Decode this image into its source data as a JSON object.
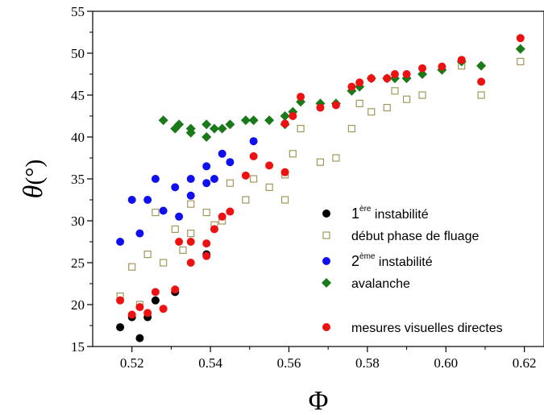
{
  "chart_data": {
    "type": "scatter",
    "xlabel": "Φ",
    "ylabel_symbol": "θ",
    "ylabel_unit": "(°)",
    "xlim": [
      0.51,
      0.625
    ],
    "ylim": [
      15,
      55
    ],
    "x_ticks": [
      0.52,
      0.54,
      0.56,
      0.58,
      0.6,
      0.62
    ],
    "x_tick_labels": [
      "0.52",
      "0.54",
      "0.56",
      "0.58",
      "0.60",
      "0.62"
    ],
    "y_ticks": [
      15,
      20,
      25,
      30,
      35,
      40,
      45,
      50,
      55
    ],
    "y_tick_labels": [
      "15",
      "20",
      "25",
      "30",
      "35",
      "40",
      "45",
      "50",
      "55"
    ],
    "grid": false,
    "legend_position": "bottom-right",
    "series": [
      {
        "name": "1ère instabilité",
        "name_parts": [
          "1",
          "ère",
          " instabilité"
        ],
        "marker": "circle",
        "color": "#000000",
        "points": [
          [
            0.517,
            17.3
          ],
          [
            0.52,
            18.5
          ],
          [
            0.522,
            16.0
          ],
          [
            0.524,
            18.5
          ],
          [
            0.526,
            20.5
          ],
          [
            0.531,
            21.5
          ],
          [
            0.539,
            26.0
          ]
        ]
      },
      {
        "name": "début phase de fluage",
        "marker": "square-open",
        "color": "#a09a5a",
        "points": [
          [
            0.517,
            21.0
          ],
          [
            0.52,
            24.5
          ],
          [
            0.522,
            20.0
          ],
          [
            0.524,
            26.0
          ],
          [
            0.526,
            31.0
          ],
          [
            0.528,
            25.0
          ],
          [
            0.531,
            29.0
          ],
          [
            0.533,
            26.5
          ],
          [
            0.535,
            32.0
          ],
          [
            0.535,
            28.5
          ],
          [
            0.539,
            31.0
          ],
          [
            0.541,
            29.5
          ],
          [
            0.543,
            30.0
          ],
          [
            0.545,
            34.5
          ],
          [
            0.549,
            32.5
          ],
          [
            0.551,
            35.0
          ],
          [
            0.555,
            34.0
          ],
          [
            0.559,
            32.5
          ],
          [
            0.559,
            35.5
          ],
          [
            0.561,
            38.0
          ],
          [
            0.563,
            41.0
          ],
          [
            0.568,
            37.0
          ],
          [
            0.572,
            37.5
          ],
          [
            0.576,
            41.0
          ],
          [
            0.578,
            44.0
          ],
          [
            0.581,
            43.0
          ],
          [
            0.585,
            43.5
          ],
          [
            0.587,
            45.5
          ],
          [
            0.59,
            44.5
          ],
          [
            0.594,
            45.0
          ],
          [
            0.604,
            48.5
          ],
          [
            0.609,
            45.0
          ],
          [
            0.619,
            49.0
          ]
        ]
      },
      {
        "name": "2ème instabilité",
        "name_parts": [
          "2",
          "ème",
          " instabilité"
        ],
        "marker": "circle",
        "color": "#1010ee",
        "points": [
          [
            0.517,
            27.5
          ],
          [
            0.52,
            32.5
          ],
          [
            0.522,
            28.5
          ],
          [
            0.524,
            32.5
          ],
          [
            0.526,
            35.0
          ],
          [
            0.528,
            31.2
          ],
          [
            0.531,
            34.0
          ],
          [
            0.532,
            30.5
          ],
          [
            0.535,
            35.0
          ],
          [
            0.535,
            33.0
          ],
          [
            0.539,
            34.5
          ],
          [
            0.539,
            36.5
          ],
          [
            0.541,
            35.0
          ],
          [
            0.543,
            38.0
          ],
          [
            0.545,
            37.0
          ],
          [
            0.551,
            39.5
          ]
        ]
      },
      {
        "name": "avalanche",
        "marker": "diamond",
        "color": "#1a7a1a",
        "points": [
          [
            0.528,
            42.0
          ],
          [
            0.531,
            41.0
          ],
          [
            0.532,
            41.5
          ],
          [
            0.535,
            41.0
          ],
          [
            0.535,
            40.5
          ],
          [
            0.539,
            41.5
          ],
          [
            0.539,
            40.0
          ],
          [
            0.541,
            41.0
          ],
          [
            0.543,
            41.0
          ],
          [
            0.545,
            41.5
          ],
          [
            0.549,
            42.0
          ],
          [
            0.551,
            42.0
          ],
          [
            0.555,
            42.0
          ],
          [
            0.559,
            41.5
          ],
          [
            0.559,
            42.5
          ],
          [
            0.561,
            43.0
          ],
          [
            0.563,
            44.2
          ],
          [
            0.568,
            44.0
          ],
          [
            0.572,
            44.0
          ],
          [
            0.576,
            45.5
          ],
          [
            0.578,
            46.0
          ],
          [
            0.581,
            47.0
          ],
          [
            0.585,
            47.0
          ],
          [
            0.587,
            47.0
          ],
          [
            0.59,
            47.0
          ],
          [
            0.594,
            47.5
          ],
          [
            0.599,
            48.0
          ],
          [
            0.604,
            49.0
          ],
          [
            0.609,
            48.5
          ],
          [
            0.619,
            50.5
          ]
        ]
      },
      {
        "name": "mesures visuelles directes",
        "marker": "circle",
        "color": "#ee1111",
        "points": [
          [
            0.517,
            20.5
          ],
          [
            0.52,
            18.8
          ],
          [
            0.522,
            19.7
          ],
          [
            0.524,
            19.0
          ],
          [
            0.526,
            21.5
          ],
          [
            0.528,
            19.5
          ],
          [
            0.531,
            21.8
          ],
          [
            0.532,
            27.5
          ],
          [
            0.535,
            27.5
          ],
          [
            0.535,
            25.0
          ],
          [
            0.539,
            27.3
          ],
          [
            0.539,
            25.8
          ],
          [
            0.541,
            29.0
          ],
          [
            0.543,
            30.5
          ],
          [
            0.545,
            31.1
          ],
          [
            0.549,
            35.4
          ],
          [
            0.551,
            37.7
          ],
          [
            0.555,
            36.6
          ],
          [
            0.559,
            35.8
          ],
          [
            0.559,
            41.6
          ],
          [
            0.561,
            42.5
          ],
          [
            0.563,
            44.8
          ],
          [
            0.568,
            43.5
          ],
          [
            0.572,
            43.8
          ],
          [
            0.576,
            46.0
          ],
          [
            0.578,
            46.5
          ],
          [
            0.581,
            47.0
          ],
          [
            0.585,
            47.0
          ],
          [
            0.587,
            47.5
          ],
          [
            0.59,
            47.5
          ],
          [
            0.594,
            48.2
          ],
          [
            0.599,
            48.4
          ],
          [
            0.604,
            49.2
          ],
          [
            0.609,
            46.6
          ],
          [
            0.619,
            51.8
          ]
        ]
      }
    ]
  }
}
